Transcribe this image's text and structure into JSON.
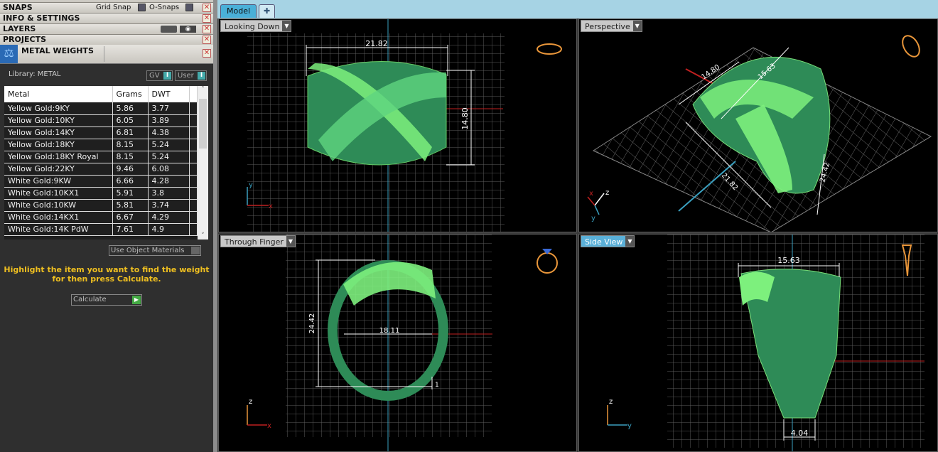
{
  "panels": {
    "snaps": "SNAPS",
    "grid_snap": "Grid Snap",
    "o_snaps": "O-Snaps",
    "info": "INFO & SETTINGS",
    "layers": "LAYERS",
    "projects": "PROJECTS",
    "metal_weights": "METAL WEIGHTS",
    "close": "✕"
  },
  "metal": {
    "library": "Library: METAL",
    "gv": "GV",
    "user": "User",
    "toggle": "I",
    "columns": [
      "Metal",
      "Grams",
      "DWT"
    ],
    "rows": [
      [
        "Yellow Gold:9KY",
        "5.86",
        "3.77"
      ],
      [
        "Yellow Gold:10KY",
        "6.05",
        "3.89"
      ],
      [
        "Yellow Gold:14KY",
        "6.81",
        "4.38"
      ],
      [
        "Yellow Gold:18KY",
        "8.15",
        "5.24"
      ],
      [
        "Yellow Gold:18KY Royal",
        "8.15",
        "5.24"
      ],
      [
        "Yellow Gold:22KY",
        "9.46",
        "6.08"
      ],
      [
        "White Gold:9KW",
        "6.66",
        "4.28"
      ],
      [
        "White Gold:10KX1",
        "5.91",
        "3.8"
      ],
      [
        "White Gold:10KW",
        "5.81",
        "3.74"
      ],
      [
        "White Gold:14KX1",
        "6.67",
        "4.29"
      ],
      [
        "White Gold:14K PdW",
        "7.61",
        "4.9"
      ]
    ],
    "use_object_materials": "Use Object Materials",
    "hint_line1": "Highlight the item you want to find the weight",
    "hint_line2": "for then press Calculate.",
    "calculate": "Calculate"
  },
  "tabs": {
    "model": "Model",
    "add": "✚"
  },
  "viewports": {
    "top": {
      "label": "Looking Down",
      "dim_w": "21.82",
      "dim_h": "14.80",
      "axis1": "y",
      "axis2": "x"
    },
    "persp": {
      "label": "Perspective",
      "dim_a": "14.80",
      "dim_b": "15.63",
      "dim_c": "21.82",
      "dim_d": "24.42",
      "axis1": "z",
      "axis2": "x",
      "axis3": "y"
    },
    "front": {
      "label": "Through Finger",
      "dim_w": "18.11",
      "dim_h": "24.42",
      "dim_t": "1",
      "axis1": "z",
      "axis2": "x"
    },
    "side": {
      "label": "Side View",
      "dim_top": "15.63",
      "dim_bot": "4.04",
      "axis1": "z",
      "axis2": "y"
    }
  },
  "colors": {
    "ring_dark": "#2e8b57",
    "ring_light": "#7df07d",
    "grid": "#666666",
    "tab_bar": "#a6d3e4",
    "hint": "#f0c020"
  }
}
